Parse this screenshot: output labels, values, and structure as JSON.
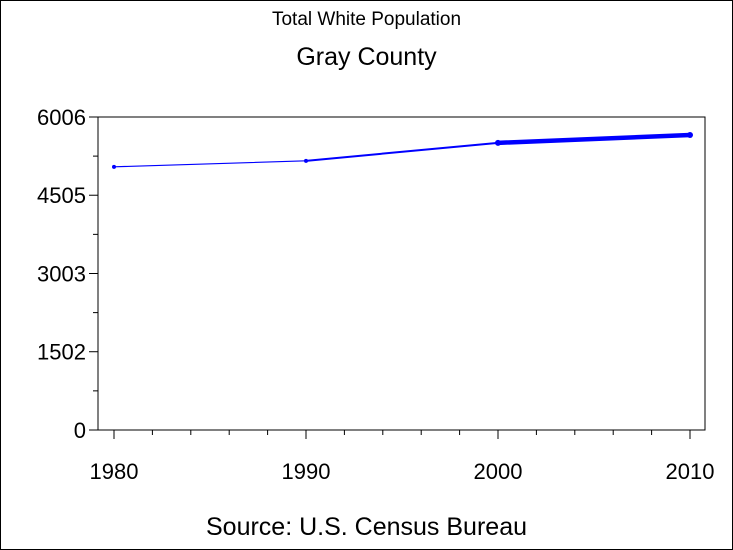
{
  "chart_data": {
    "type": "line",
    "title": "Total White Population",
    "subtitle": "Gray County",
    "source": "Source: U.S. Census Bureau",
    "x": [
      1980,
      1990,
      2000,
      2010
    ],
    "series": [
      {
        "values": [
          5050,
          5165,
          5510,
          5660
        ]
      }
    ],
    "series_color": "#0000ff",
    "xlim": [
      1980,
      2010
    ],
    "ylim": [
      0,
      6006
    ],
    "y_ticks": [
      0,
      1502,
      3003,
      4505,
      6006
    ],
    "y_tick_labels": [
      "0",
      "1502",
      "3003",
      "4505",
      "6006"
    ],
    "x_ticks": [
      1980,
      1990,
      2000,
      2010
    ],
    "x_tick_labels": [
      "1980",
      "1990",
      "2000",
      "2010"
    ],
    "grid": false
  }
}
